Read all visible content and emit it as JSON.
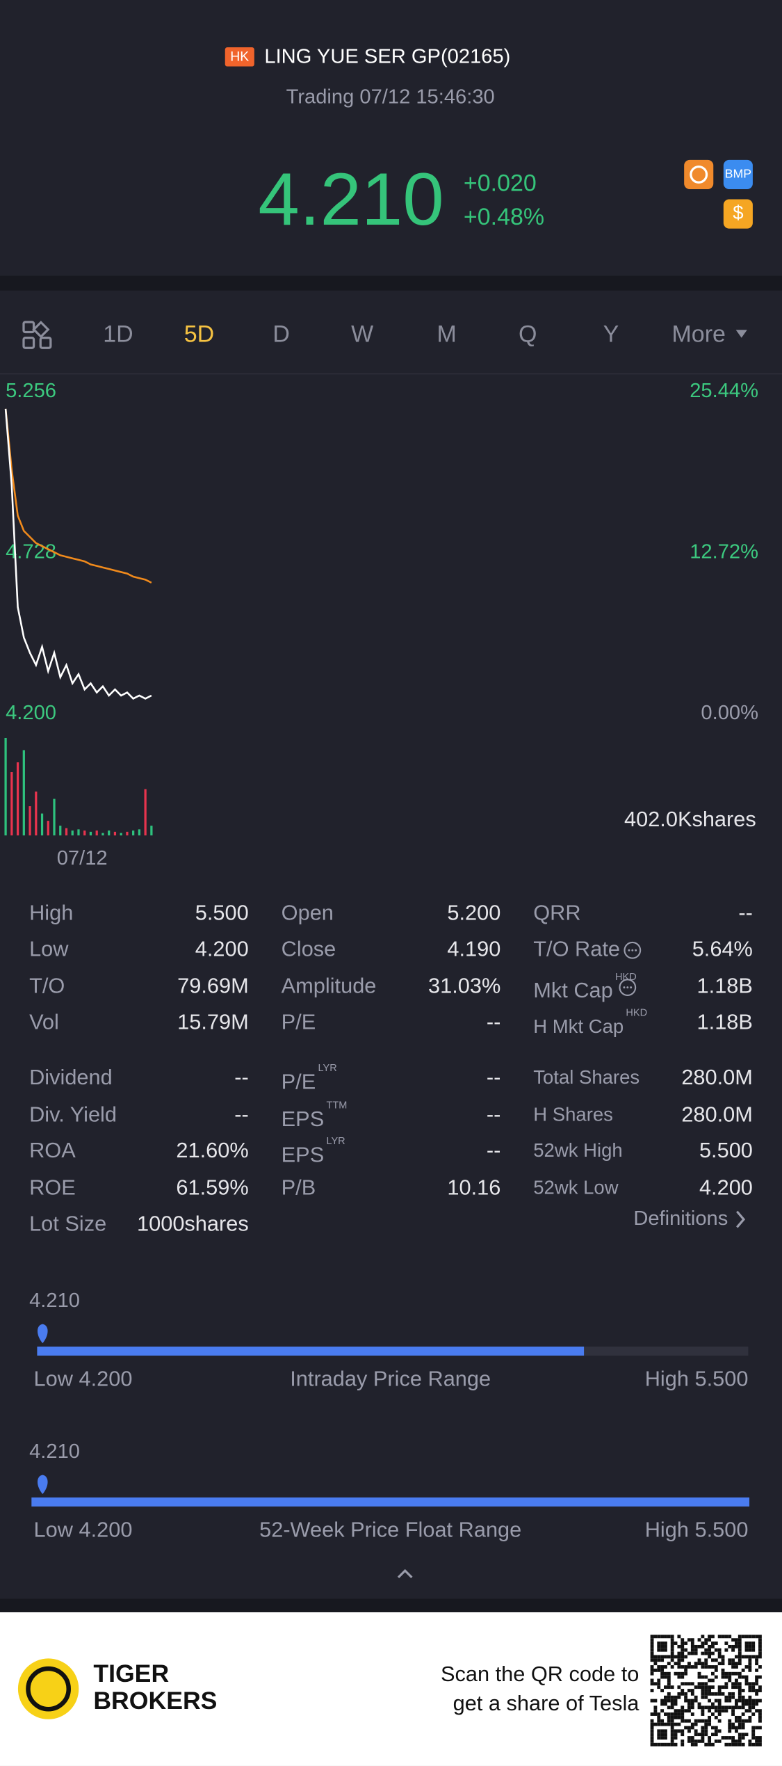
{
  "header": {
    "market": "HK",
    "name": "LING YUE SER GP(02165)",
    "status": "Trading 07/12 15:46:30",
    "price": "4.210",
    "change": "+0.020",
    "change_pct": "+0.48%",
    "icons": [
      "BMP",
      "$"
    ]
  },
  "tabs": [
    "1D",
    "5D",
    "D",
    "W",
    "M",
    "Q",
    "Y",
    "More"
  ],
  "active_tab": 1,
  "chart": {
    "ylim": [
      4.2,
      5.256
    ],
    "yticks": [
      5.256,
      4.728,
      {
        "value": 4.2,
        "label": "4.200"
      }
    ],
    "y2lim": [
      0,
      25.44
    ],
    "y2ticks": [
      {
        "value": 25.44,
        "label": "25.44%"
      },
      {
        "value": 12.72,
        "label": "12.72%"
      },
      {
        "value": 0,
        "label": "0.00%"
      }
    ],
    "price": [
      5.2,
      4.95,
      4.55,
      4.45,
      4.4,
      4.36,
      4.42,
      4.34,
      4.4,
      4.32,
      4.36,
      4.3,
      4.33,
      4.28,
      4.3,
      4.27,
      4.29,
      4.26,
      4.28,
      4.26,
      4.27,
      4.25,
      4.26,
      4.25,
      4.26
    ],
    "price_color": "#ffffff",
    "avg": [
      5.2,
      5.0,
      4.85,
      4.8,
      4.78,
      4.76,
      4.75,
      4.74,
      4.73,
      4.72,
      4.715,
      4.71,
      4.705,
      4.7,
      4.69,
      4.685,
      4.68,
      4.675,
      4.67,
      4.665,
      4.66,
      4.65,
      4.645,
      4.64,
      4.63
    ],
    "avg_color": "#f08a1c",
    "volume": [
      400000,
      260000,
      300000,
      350000,
      120000,
      180000,
      90000,
      60000,
      150000,
      40000,
      30000,
      20000,
      25000,
      20000,
      15000,
      20000,
      10000,
      20000,
      15000,
      10000,
      15000,
      20000,
      25000,
      190000,
      40000
    ],
    "volume_colors": [
      "#2ec27e",
      "#e8344e",
      "#e8344e",
      "#2ec27e",
      "#e8344e",
      "#e8344e",
      "#2ec27e",
      "#e8344e",
      "#2ec27e",
      "#2ec27e",
      "#e8344e",
      "#2ec27e",
      "#2ec27e",
      "#e8344e",
      "#2ec27e",
      "#e8344e",
      "#2ec27e",
      "#2ec27e",
      "#e8344e",
      "#2ec27e",
      "#e8344e",
      "#2ec27e",
      "#2ec27e",
      "#e8344e",
      "#2ec27e"
    ],
    "volume_max": {
      "value": 402000,
      "label": "402.0Kshares"
    },
    "date": "07/12"
  },
  "stats": [
    [
      {
        "label": "High",
        "value": "5.500"
      },
      {
        "label": "Open",
        "value": "5.200"
      },
      {
        "label": "QRR",
        "value": "--"
      }
    ],
    [
      {
        "label": "Low",
        "value": "4.200"
      },
      {
        "label": "Close",
        "value": "4.190"
      },
      {
        "label": "T/O Rate",
        "info": true,
        "value": "5.64%"
      }
    ],
    [
      {
        "label": "T/O",
        "value": "79.69M"
      },
      {
        "label": "Amplitude",
        "value": "31.03%"
      },
      {
        "label": "Mkt Cap",
        "sup": "HKD",
        "info": true,
        "value": "1.18B"
      }
    ],
    [
      {
        "label": "Vol",
        "value": "15.79M"
      },
      {
        "label": "P/E",
        "value": "--"
      },
      {
        "label": "H Mkt Cap",
        "sup": "HKD",
        "value": "1.18B"
      }
    ],
    [
      {
        "label": "Dividend",
        "value": "--"
      },
      {
        "label": "P/E",
        "sup": "LYR",
        "value": "--"
      },
      {
        "label": "Total Shares",
        "value": "280.0M"
      }
    ],
    [
      {
        "label": "Div. Yield",
        "value": "--"
      },
      {
        "label": "EPS",
        "sup": "TTM",
        "value": "--"
      },
      {
        "label": "H Shares",
        "value": "280.0M"
      }
    ],
    [
      {
        "label": "ROA",
        "value": "21.60%"
      },
      {
        "label": "EPS",
        "sup": "LYR",
        "value": "--"
      },
      {
        "label": "52wk High",
        "value": "5.500"
      }
    ],
    [
      {
        "label": "ROE",
        "value": "61.59%"
      },
      {
        "label": "P/B",
        "value": "10.16"
      },
      {
        "label": "52wk Low",
        "value": "4.200"
      }
    ],
    [
      {
        "label": "Lot Size",
        "value": "1000shares"
      }
    ]
  ],
  "definitions": "Definitions",
  "ranges": [
    {
      "current": {
        "value": 4.21,
        "label": "4.210"
      },
      "low": {
        "value": 4.2,
        "label": "Low 4.200"
      },
      "high": {
        "value": 5.5,
        "label": "High 5.500"
      },
      "title": "Intraday Price Range"
    },
    {
      "current": {
        "value": 4.21,
        "label": "4.210"
      },
      "low": {
        "value": 4.2,
        "label": "Low 4.200"
      },
      "high": {
        "value": 5.5,
        "label": "High 5.500"
      },
      "title": "52-Week Price Float Range"
    }
  ],
  "footer": {
    "brand": [
      "TIGER",
      "BROKERS"
    ],
    "cta": [
      "Scan the QR code to",
      "get a share of Tesla"
    ]
  }
}
